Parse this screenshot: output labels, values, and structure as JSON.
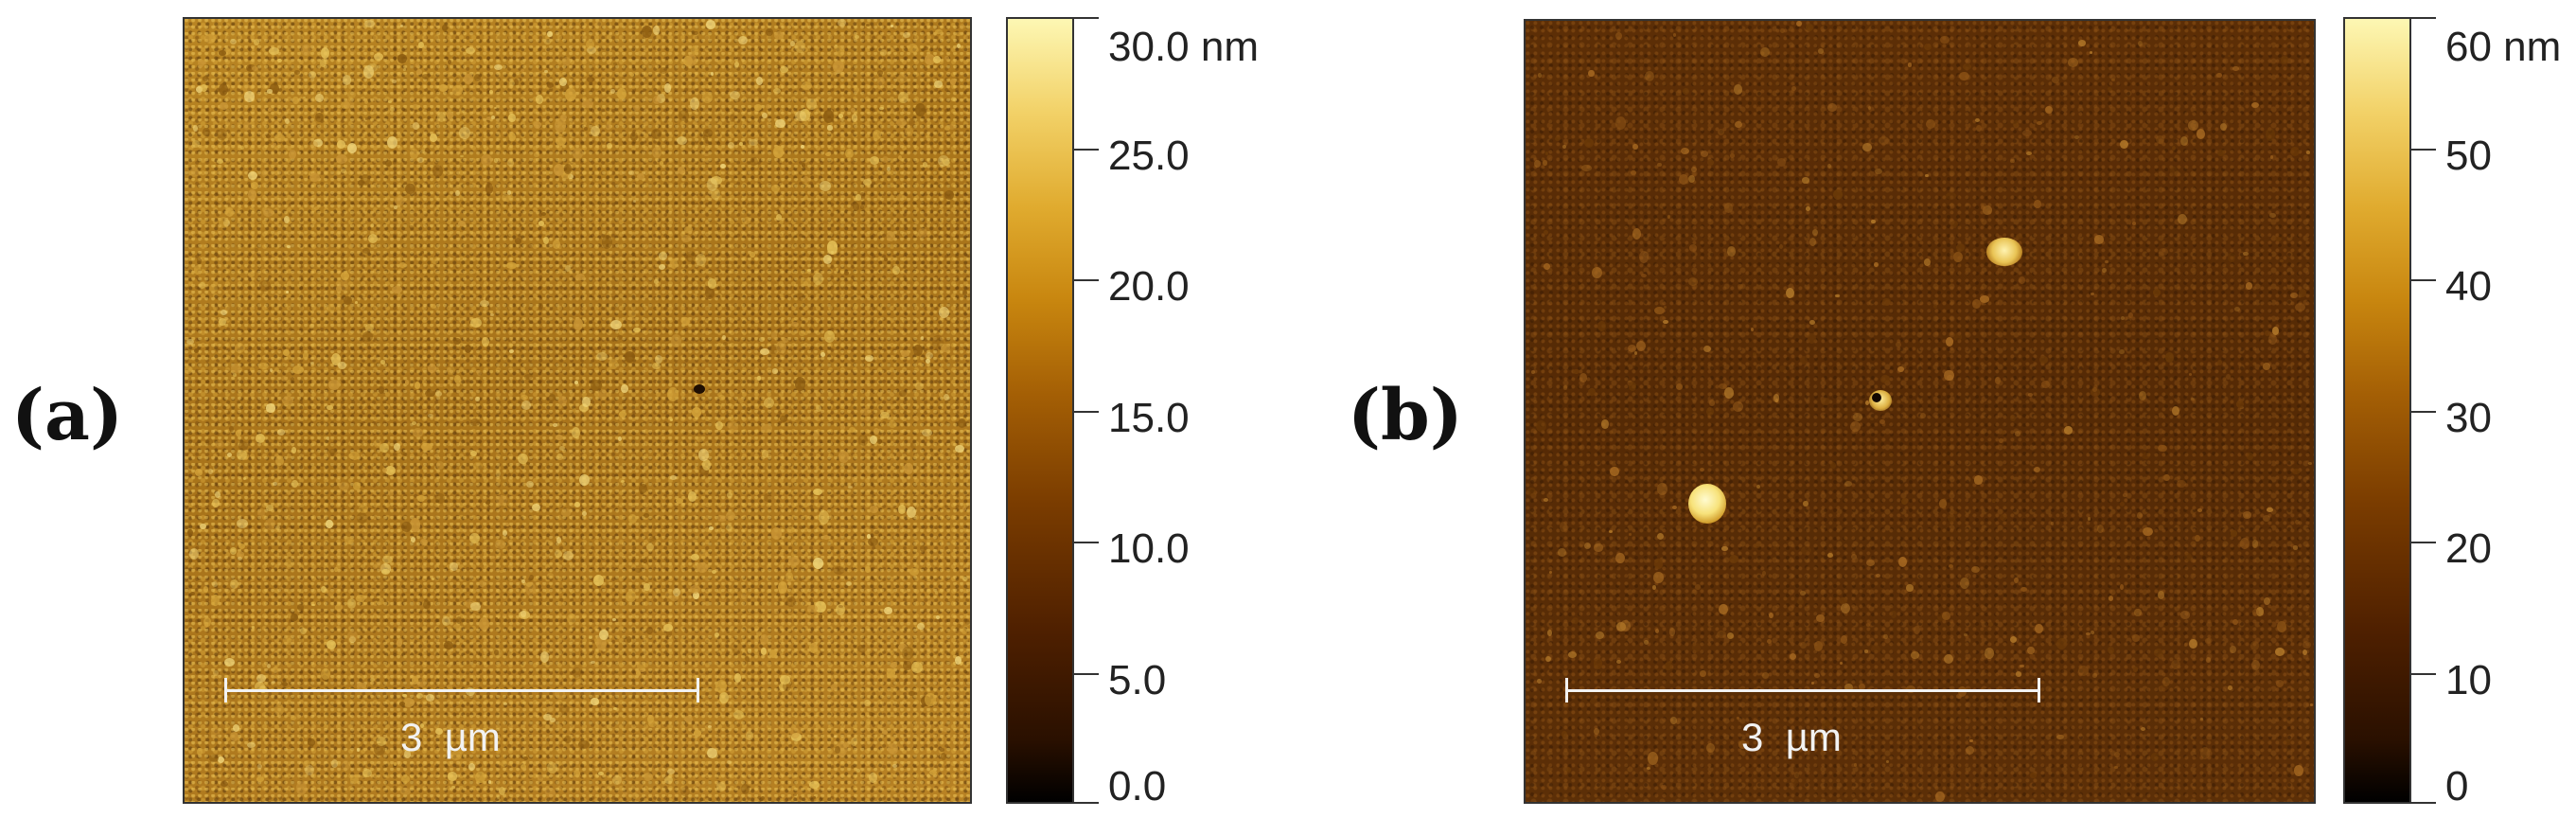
{
  "figure": {
    "panels": [
      {
        "id": "a",
        "label": "(a)",
        "scale_bar": {
          "label": "3  µm"
        },
        "colorbar": {
          "range_nm": [
            0,
            30
          ],
          "ticks": [
            {
              "value": 30,
              "text": "30.0 nm"
            },
            {
              "value": 25,
              "text": "25.0"
            },
            {
              "value": 20,
              "text": "20.0"
            },
            {
              "value": 15,
              "text": "15.0"
            },
            {
              "value": 10,
              "text": "10.0"
            },
            {
              "value": 5,
              "text": "5.0"
            },
            {
              "value": 0,
              "text": "0.0"
            }
          ]
        }
      },
      {
        "id": "b",
        "label": "(b)",
        "scale_bar": {
          "label": "3  µm"
        },
        "colorbar": {
          "range_nm": [
            0,
            60
          ],
          "ticks": [
            {
              "value": 60,
              "text": "60 nm"
            },
            {
              "value": 50,
              "text": "50"
            },
            {
              "value": 40,
              "text": "40"
            },
            {
              "value": 30,
              "text": "30"
            },
            {
              "value": 20,
              "text": "20"
            },
            {
              "value": 10,
              "text": "10"
            },
            {
              "value": 0,
              "text": "0"
            }
          ]
        }
      }
    ],
    "colormap": [
      "#000000",
      "#4f2000",
      "#a45f05",
      "#e0ab2f",
      "#fdf7b3"
    ]
  }
}
